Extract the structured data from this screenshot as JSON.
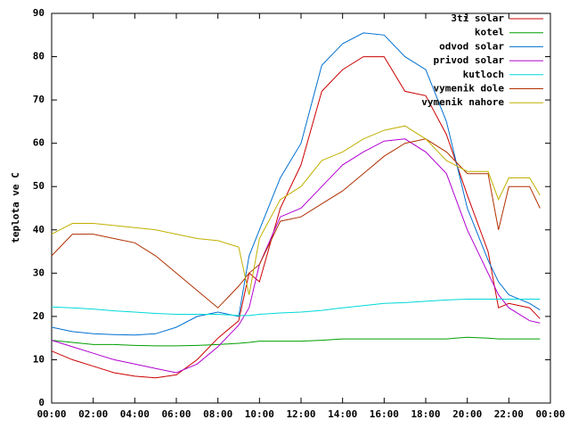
{
  "chart_data": {
    "type": "line",
    "ylabel": "teplota ve C",
    "x": [
      0,
      1,
      2,
      3,
      4,
      5,
      6,
      7,
      8,
      9,
      9.5,
      10,
      11,
      12,
      13,
      14,
      15,
      16,
      17,
      18,
      19,
      20,
      21,
      21.5,
      22,
      23,
      23.5
    ],
    "xlim": [
      0,
      24
    ],
    "xticks": [
      {
        "value": 0,
        "label": "00:00"
      },
      {
        "value": 2,
        "label": "02:00"
      },
      {
        "value": 4,
        "label": "04:00"
      },
      {
        "value": 6,
        "label": "06:00"
      },
      {
        "value": 8,
        "label": "08:00"
      },
      {
        "value": 10,
        "label": "10:00"
      },
      {
        "value": 12,
        "label": "12:00"
      },
      {
        "value": 14,
        "label": "14:00"
      },
      {
        "value": 16,
        "label": "16:00"
      },
      {
        "value": 18,
        "label": "18:00"
      },
      {
        "value": 20,
        "label": "20:00"
      },
      {
        "value": 22,
        "label": "22:00"
      },
      {
        "value": 24,
        "label": "00:00"
      }
    ],
    "ylim": [
      0,
      90
    ],
    "yticks": [
      0,
      10,
      20,
      30,
      40,
      50,
      60,
      70,
      80,
      90
    ],
    "legend": "top-right",
    "grid": false,
    "series": [
      {
        "name": "3ti solar",
        "color": "#cc0000",
        "values": [
          12,
          10,
          8.5,
          7,
          6.2,
          5.8,
          6.5,
          10,
          15,
          19,
          30,
          28,
          45,
          55,
          72,
          77,
          80,
          80,
          72,
          71,
          62,
          48,
          35,
          22,
          23,
          22,
          19.5
        ]
      },
      {
        "name": "kotel",
        "color": "#00a000",
        "values": [
          14.5,
          14,
          13.5,
          13.5,
          13.3,
          13.2,
          13.2,
          13.3,
          13.5,
          13.8,
          14,
          14.3,
          14.3,
          14.3,
          14.5,
          14.8,
          14.8,
          14.8,
          14.8,
          14.8,
          14.8,
          15.2,
          15,
          14.8,
          14.8,
          14.8,
          14.8
        ]
      },
      {
        "name": "odvod solar",
        "color": "#0070d0",
        "values": [
          17.5,
          16.5,
          16,
          15.8,
          15.7,
          16,
          17.5,
          20,
          21,
          20,
          34,
          40,
          52,
          60,
          78,
          83,
          85.5,
          85,
          80,
          77,
          65,
          45,
          33,
          28,
          25,
          23,
          21.5
        ]
      },
      {
        "name": "privod solar",
        "color": "#b000d0",
        "values": [
          14.5,
          13,
          11.5,
          10,
          9,
          8,
          7,
          9,
          13,
          18,
          22,
          32,
          43,
          45,
          50,
          55,
          58,
          60.5,
          61,
          58,
          53,
          40,
          30,
          25,
          22,
          19,
          18.5
        ]
      },
      {
        "name": "kutloch",
        "color": "#00d8d8",
        "values": [
          22.2,
          22,
          21.7,
          21.3,
          21,
          20.7,
          20.5,
          20.5,
          20.5,
          20.2,
          20.2,
          20.5,
          20.8,
          21,
          21.4,
          22,
          22.5,
          23,
          23.2,
          23.5,
          23.8,
          24,
          24,
          24,
          24,
          24,
          24
        ]
      },
      {
        "name": "vymenik dole",
        "color": "#b03000",
        "values": [
          34,
          39,
          39,
          38,
          37,
          34,
          30,
          26,
          22,
          27,
          30,
          32,
          42,
          43,
          46,
          49,
          53,
          57,
          60,
          61,
          58,
          53,
          53,
          40,
          50,
          50,
          45
        ]
      },
      {
        "name": "vymenik nahore",
        "color": "#c0b000",
        "values": [
          39,
          41.5,
          41.5,
          41,
          40.5,
          40,
          39,
          38,
          37.5,
          36,
          25,
          38,
          47,
          50,
          56,
          58,
          61,
          63,
          64,
          61,
          56,
          53.5,
          53.5,
          47,
          52,
          52,
          48
        ]
      }
    ]
  }
}
